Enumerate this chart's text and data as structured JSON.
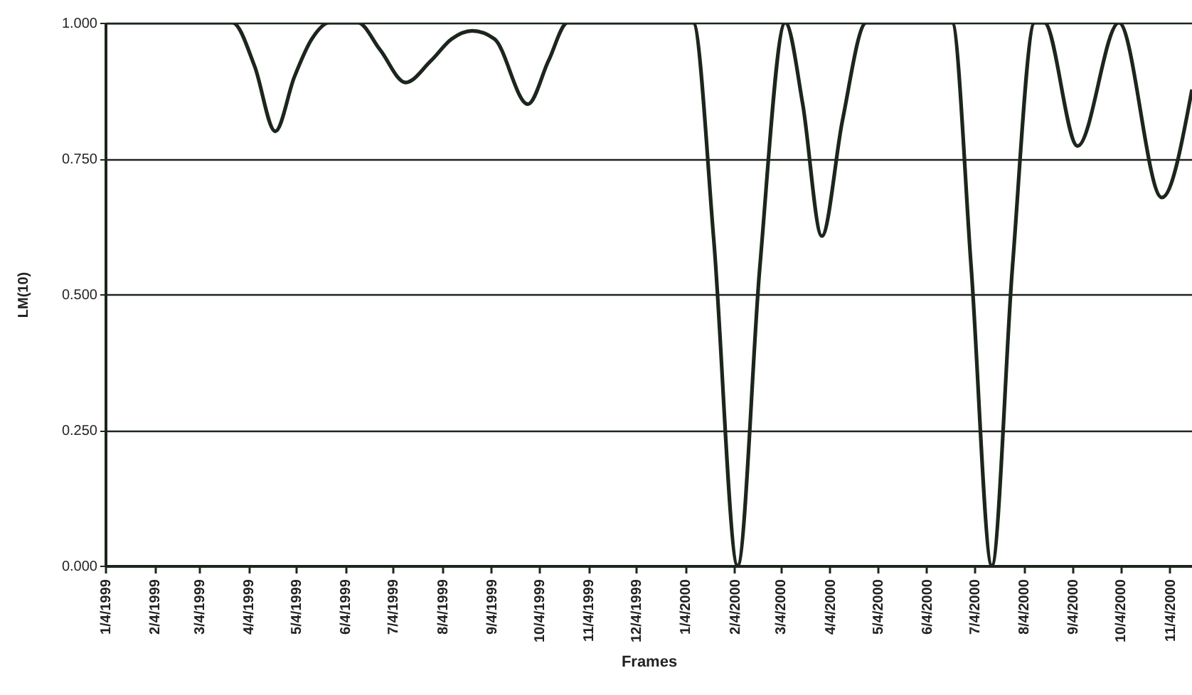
{
  "chart_data": {
    "type": "line",
    "xlabel": "Frames",
    "ylabel": "LM(10)",
    "x": [
      "1999-01-04",
      "1999-02-15",
      "1999-03-25",
      "1999-04-08",
      "1999-04-21",
      "1999-05-03",
      "1999-05-14",
      "1999-05-25",
      "1999-06-12",
      "1999-06-26",
      "1999-07-12",
      "1999-07-28",
      "1999-08-10",
      "1999-08-23",
      "1999-09-06",
      "1999-09-27",
      "1999-10-10",
      "1999-10-22",
      "2000-01-09",
      "2000-01-22",
      "2000-02-06",
      "2000-02-20",
      "2000-03-07",
      "2000-03-18",
      "2000-03-30",
      "2000-04-12",
      "2000-04-27",
      "2000-06-20",
      "2000-07-02",
      "2000-07-15",
      "2000-07-28",
      "2000-08-11",
      "2000-08-17",
      "2000-09-07",
      "2000-10-03",
      "2000-10-30",
      "2000-11-18"
    ],
    "series": [
      {
        "color": "#1c261c",
        "values": [
          1,
          1,
          1,
          0.92,
          0.8,
          0.9,
          0.97,
          1,
          1,
          0.95,
          0.89,
          0.93,
          0.97,
          0.985,
          0.97,
          0.85,
          0.93,
          1,
          1,
          0.6,
          0,
          0.55,
          1,
          0.85,
          0.607,
          0.82,
          1,
          1,
          0.55,
          0,
          0.55,
          1,
          1,
          0.773,
          1,
          0.678,
          0.877
        ]
      }
    ],
    "xlim": [
      "1999-01-04",
      "2000-11-18"
    ],
    "xticks": [
      {
        "value": "1999-01-04",
        "label": "1/4/1999"
      },
      {
        "value": "1999-02-04",
        "label": "2/4/1999"
      },
      {
        "value": "1999-03-04",
        "label": "3/4/1999"
      },
      {
        "value": "1999-04-04",
        "label": "4/4/1999"
      },
      {
        "value": "1999-05-04",
        "label": "5/4/1999"
      },
      {
        "value": "1999-06-04",
        "label": "6/4/1999"
      },
      {
        "value": "1999-07-04",
        "label": "7/4/1999"
      },
      {
        "value": "1999-08-04",
        "label": "8/4/1999"
      },
      {
        "value": "1999-09-04",
        "label": "9/4/1999"
      },
      {
        "value": "1999-10-04",
        "label": "10/4/1999"
      },
      {
        "value": "1999-11-04",
        "label": "11/4/1999"
      },
      {
        "value": "1999-12-04",
        "label": "12/4/1999"
      },
      {
        "value": "2000-01-04",
        "label": "1/4/2000"
      },
      {
        "value": "2000-02-04",
        "label": "2/4/2000"
      },
      {
        "value": "2000-03-04",
        "label": "3/4/2000"
      },
      {
        "value": "2000-04-04",
        "label": "4/4/2000"
      },
      {
        "value": "2000-05-04",
        "label": "5/4/2000"
      },
      {
        "value": "2000-06-04",
        "label": "6/4/2000"
      },
      {
        "value": "2000-07-04",
        "label": "7/4/2000"
      },
      {
        "value": "2000-08-04",
        "label": "8/4/2000"
      },
      {
        "value": "2000-09-04",
        "label": "9/4/2000"
      },
      {
        "value": "2000-10-04",
        "label": "10/4/2000"
      },
      {
        "value": "2000-11-04",
        "label": "11/4/2000"
      }
    ],
    "ylim": [
      0,
      1
    ],
    "yticks": [
      {
        "value": 0,
        "label": "0.000"
      },
      {
        "value": 0.25,
        "label": "0.250"
      },
      {
        "value": 0.5,
        "label": "0.500"
      },
      {
        "value": 0.75,
        "label": "0.750"
      },
      {
        "value": 1,
        "label": "1.000"
      }
    ],
    "grid": "y",
    "marker": "none",
    "line_style": "solid"
  }
}
